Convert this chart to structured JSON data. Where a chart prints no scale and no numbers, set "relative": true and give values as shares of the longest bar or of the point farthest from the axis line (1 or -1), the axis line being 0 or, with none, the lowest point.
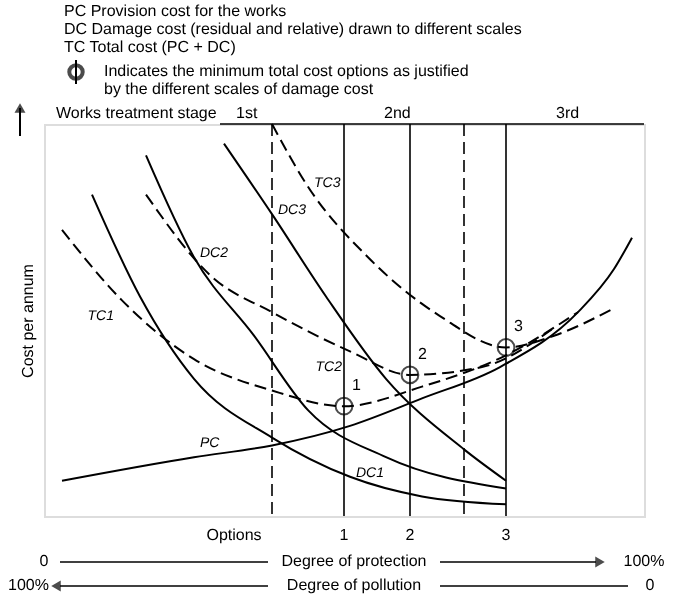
{
  "chart_data": {
    "type": "line",
    "relative": true,
    "ylabel": "Cost per annum",
    "xlabel": "Degree of protection",
    "xlim": [
      0,
      100
    ],
    "xticks": [
      0,
      {
        "value": 100,
        "label": "100%"
      }
    ],
    "series": [
      {
        "name": "PC",
        "color": "#000000",
        "line_style": "solid",
        "x": [
          3,
          25,
          38,
          51,
          63,
          76,
          89,
          95,
          98
        ],
        "values": [
          0.09,
          0.15,
          0.18,
          0.23,
          0.3,
          0.38,
          0.52,
          0.63,
          0.71
        ]
      },
      {
        "name": "DC1",
        "color": "#000000",
        "line_style": "solid",
        "x": [
          8,
          16,
          25,
          38,
          51,
          63,
          77
        ],
        "values": [
          0.82,
          0.56,
          0.35,
          0.2,
          0.1,
          0.05,
          0.03
        ]
      },
      {
        "name": "TC1",
        "color": "#000000",
        "line_style": "dashed",
        "x": [
          3,
          13,
          25,
          38,
          50,
          63,
          77,
          89
        ],
        "values": [
          0.73,
          0.55,
          0.4,
          0.32,
          0.28,
          0.33,
          0.41,
          0.52
        ]
      },
      {
        "name": "DC2",
        "color": "#000000",
        "line_style": "solid",
        "x": [
          17,
          25,
          35,
          44,
          57,
          77
        ],
        "values": [
          0.92,
          0.66,
          0.46,
          0.27,
          0.15,
          0.07
        ]
      },
      {
        "name": "TC2",
        "color": "#000000",
        "line_style": "dashed",
        "x": [
          17,
          28,
          38,
          51,
          61,
          73,
          85
        ],
        "values": [
          0.82,
          0.61,
          0.52,
          0.42,
          0.36,
          0.38,
          0.48
        ]
      },
      {
        "name": "DC3",
        "color": "#000000",
        "line_style": "solid",
        "x": [
          30,
          38,
          47,
          57,
          70,
          77
        ],
        "values": [
          0.95,
          0.77,
          0.56,
          0.35,
          0.17,
          0.09
        ]
      },
      {
        "name": "TC3",
        "color": "#000000",
        "line_style": "dashed",
        "x": [
          38,
          44,
          54,
          66,
          77,
          85,
          95
        ],
        "values": [
          1.0,
          0.84,
          0.66,
          0.51,
          0.43,
          0.46,
          0.53
        ]
      },
      {
        "name": "Indicates the minimum total cost options as justified by the different scales of damage cost",
        "type": "scatter",
        "marker": "circle",
        "color": "#000000",
        "x": [
          50,
          61,
          77
        ],
        "values": [
          0.28,
          0.36,
          0.43
        ]
      }
    ],
    "ref_lines": [
      {
        "axis": "x",
        "value": 38,
        "label": null,
        "line_style": "dashed"
      },
      {
        "axis": "x",
        "value": 70,
        "label": null,
        "line_style": "dashed"
      },
      {
        "axis": "x",
        "value": 50,
        "label": null,
        "line_style": "solid"
      },
      {
        "axis": "x",
        "value": 61,
        "label": null,
        "line_style": "solid"
      },
      {
        "axis": "x",
        "value": 77,
        "label": null,
        "line_style": "solid"
      }
    ],
    "annotations": [
      "PC   Provision cost for the works",
      "DC   Damage cost (residual and relative) drawn to different scales",
      "TC   Total cost (PC + DC)",
      "Works treatment stage",
      "1st",
      "2nd",
      "3rd",
      "Options",
      "100%",
      "0",
      "Degree of pollution",
      {
        "text": "1",
        "x": 50,
        "y": 0
      },
      {
        "text": "2",
        "x": 61,
        "y": 0
      },
      {
        "text": "3",
        "x": 77,
        "y": 0
      },
      {
        "text": "1",
        "x": 50,
        "y": 0.28
      },
      {
        "text": "2",
        "x": 61,
        "y": 0.36
      },
      {
        "text": "3",
        "x": 77,
        "y": 0.43
      }
    ],
    "grid": false
  }
}
